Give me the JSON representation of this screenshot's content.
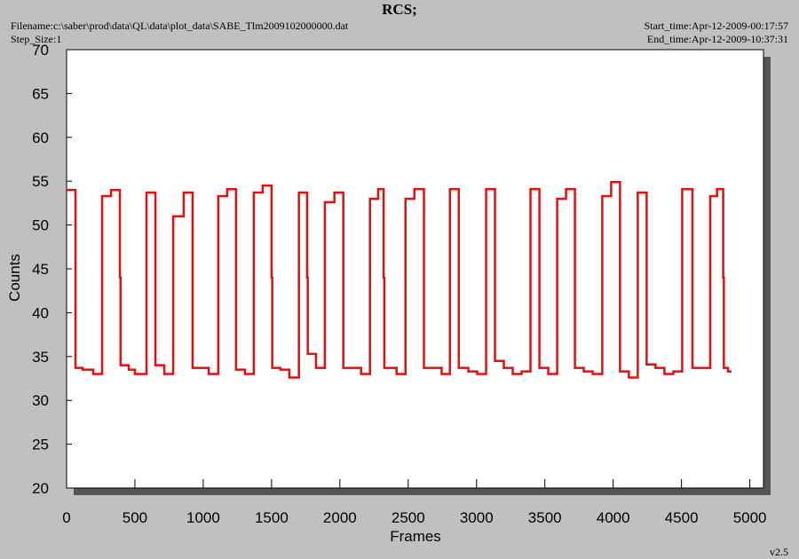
{
  "chart_data": {
    "type": "line",
    "title": "RCS;",
    "filename": "Filename:c:\\saber\\prod\\data\\QL\\data\\plot_data\\SABE_Tlm2009102000000.dat",
    "step_size": "Step_Size:1",
    "start_time": "Start_time:Apr-12-2009-00:17:57",
    "end_time": "End_time:Apr-12-2009-10:37:31",
    "version": "v2.5",
    "xlabel": "Frames",
    "ylabel": "Counts",
    "xlim": [
      0,
      5100
    ],
    "ylim": [
      20,
      70
    ],
    "xticks": [
      0,
      500,
      1000,
      1500,
      2000,
      2500,
      3000,
      3500,
      4000,
      4500,
      5000
    ],
    "yticks": [
      20,
      25,
      30,
      35,
      40,
      45,
      50,
      55,
      60,
      65,
      70
    ],
    "series": [
      {
        "color": "#e01010",
        "x": [
          0,
          65,
          65,
          117,
          117,
          195,
          195,
          260,
          260,
          325,
          325,
          390,
          390,
          395,
          395,
          455,
          455,
          500,
          500,
          585,
          585,
          650,
          650,
          715,
          715,
          780,
          780,
          857,
          857,
          922,
          922,
          1040,
          1040,
          1110,
          1110,
          1175,
          1175,
          1240,
          1240,
          1305,
          1305,
          1370,
          1370,
          1435,
          1435,
          1500,
          1500,
          1505,
          1505,
          1565,
          1565,
          1630,
          1630,
          1700,
          1700,
          1760,
          1760,
          1765,
          1765,
          1825,
          1825,
          1890,
          1890,
          1960,
          1960,
          2025,
          2025,
          2155,
          2155,
          2220,
          2220,
          2280,
          2280,
          2320,
          2320,
          2325,
          2325,
          2415,
          2415,
          2480,
          2480,
          2545,
          2545,
          2615,
          2615,
          2745,
          2745,
          2805,
          2805,
          2870,
          2870,
          2940,
          2940,
          3005,
          3005,
          3070,
          3070,
          3135,
          3135,
          3200,
          3200,
          3265,
          3265,
          3330,
          3330,
          3395,
          3395,
          3460,
          3460,
          3525,
          3525,
          3590,
          3590,
          3655,
          3655,
          3720,
          3720,
          3785,
          3785,
          3850,
          3850,
          3920,
          3920,
          3985,
          3985,
          4050,
          4050,
          4115,
          4115,
          4180,
          4180,
          4245,
          4245,
          4310,
          4310,
          4375,
          4375,
          4440,
          4440,
          4505,
          4505,
          4580,
          4580,
          4710,
          4710,
          4760,
          4760,
          4805,
          4805,
          4810,
          4810,
          4840,
          4840,
          4865
        ],
        "values": [
          54,
          54,
          33.7,
          33.7,
          33.5,
          33.5,
          33,
          33,
          53.3,
          53.3,
          54,
          54,
          44,
          44,
          34,
          34,
          33.5,
          33.5,
          33,
          33,
          53.7,
          53.7,
          34,
          34,
          33,
          33,
          51,
          51,
          53.7,
          53.7,
          33.7,
          33.7,
          33,
          33,
          53.3,
          53.3,
          54.1,
          54.1,
          33.5,
          33.5,
          33,
          33,
          53.7,
          53.7,
          54.5,
          54.5,
          44,
          44,
          33.7,
          33.7,
          33.5,
          33.5,
          32.6,
          32.6,
          53.7,
          53.7,
          44,
          44,
          35.3,
          35.3,
          33.7,
          33.7,
          52.6,
          52.6,
          53.7,
          53.7,
          33.7,
          33.7,
          33,
          33,
          53,
          53,
          54.1,
          54.1,
          44,
          44,
          33.7,
          33.7,
          33,
          33,
          53,
          53,
          54.1,
          54.1,
          33.7,
          33.7,
          33,
          33,
          54.1,
          54.1,
          33.7,
          33.7,
          33.3,
          33.3,
          33,
          33,
          54.1,
          54.1,
          34.5,
          34.5,
          33.7,
          33.7,
          33,
          33,
          33.3,
          33.3,
          54.1,
          54.1,
          33.7,
          33.7,
          33,
          33,
          53,
          53,
          54.1,
          54.1,
          33.7,
          33.7,
          33.3,
          33.3,
          33,
          33,
          53.3,
          53.3,
          54.9,
          54.9,
          33.3,
          33.3,
          32.6,
          32.6,
          53.7,
          53.7,
          34.1,
          34.1,
          33.7,
          33.7,
          33,
          33,
          33.3,
          33.3,
          54.1,
          54.1,
          33.7,
          33.7,
          53.3,
          53.3,
          54.1,
          54.1,
          44,
          44,
          33.7,
          33.7,
          33.3,
          33.3
        ]
      }
    ]
  }
}
